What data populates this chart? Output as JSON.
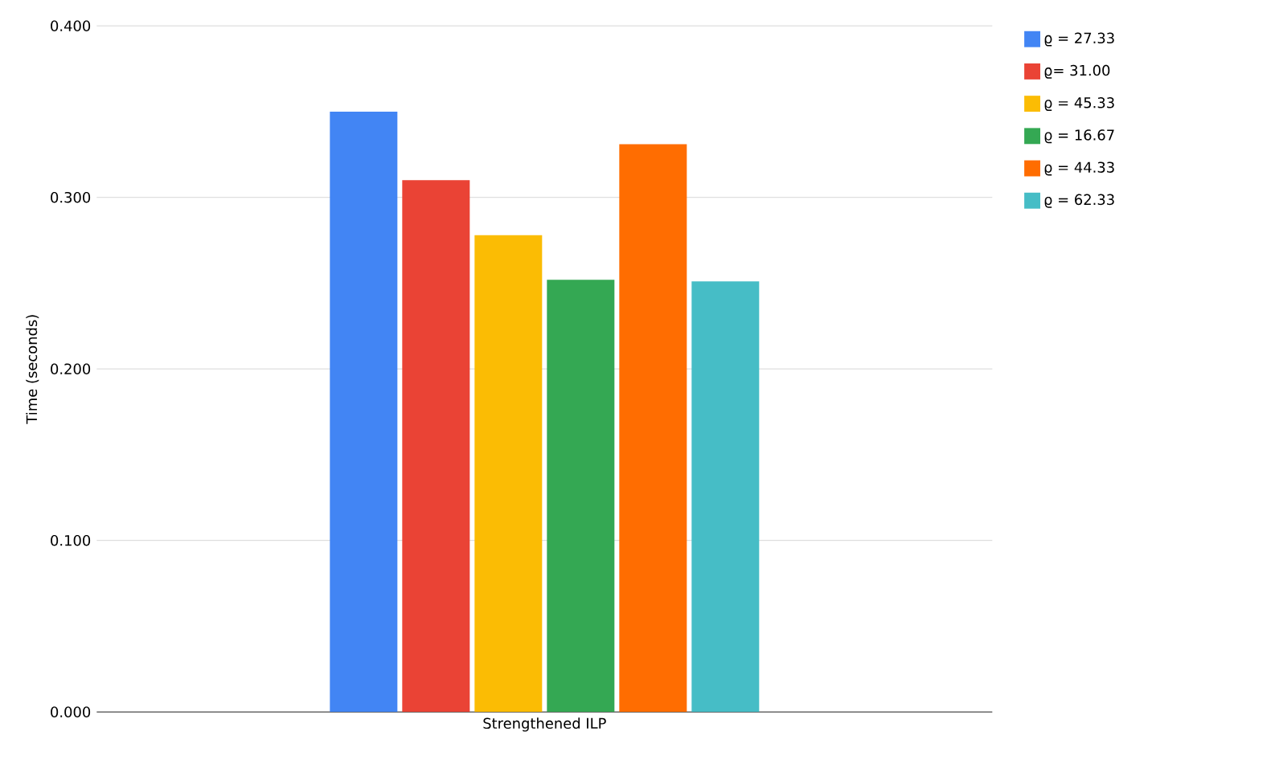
{
  "chart_data": {
    "type": "bar",
    "ylabel": "Time (seconds)",
    "categories": [
      "Strengthened ILP"
    ],
    "series": [
      {
        "name": "ϱ = 27.33",
        "color": "#4285f4",
        "values": [
          0.35
        ]
      },
      {
        "name": "ϱ= 31.00",
        "color": "#ea4335",
        "values": [
          0.31
        ]
      },
      {
        "name": "ϱ = 45.33",
        "color": "#fbbc04",
        "values": [
          0.278
        ]
      },
      {
        "name": "ϱ = 16.67",
        "color": "#34a853",
        "values": [
          0.252
        ]
      },
      {
        "name": "ϱ = 44.33",
        "color": "#ff6d01",
        "values": [
          0.331
        ]
      },
      {
        "name": "ϱ = 62.33",
        "color": "#46bdc6",
        "values": [
          0.251
        ]
      }
    ],
    "ylim": [
      0,
      0.4
    ],
    "yticks": [
      {
        "value": 0,
        "label": "0.000"
      },
      {
        "value": 0.1,
        "label": "0.100"
      },
      {
        "value": 0.2,
        "label": "0.200"
      },
      {
        "value": 0.3,
        "label": "0.300"
      },
      {
        "value": 0.4,
        "label": "0.400"
      }
    ],
    "grid": "y",
    "legend": "right"
  }
}
